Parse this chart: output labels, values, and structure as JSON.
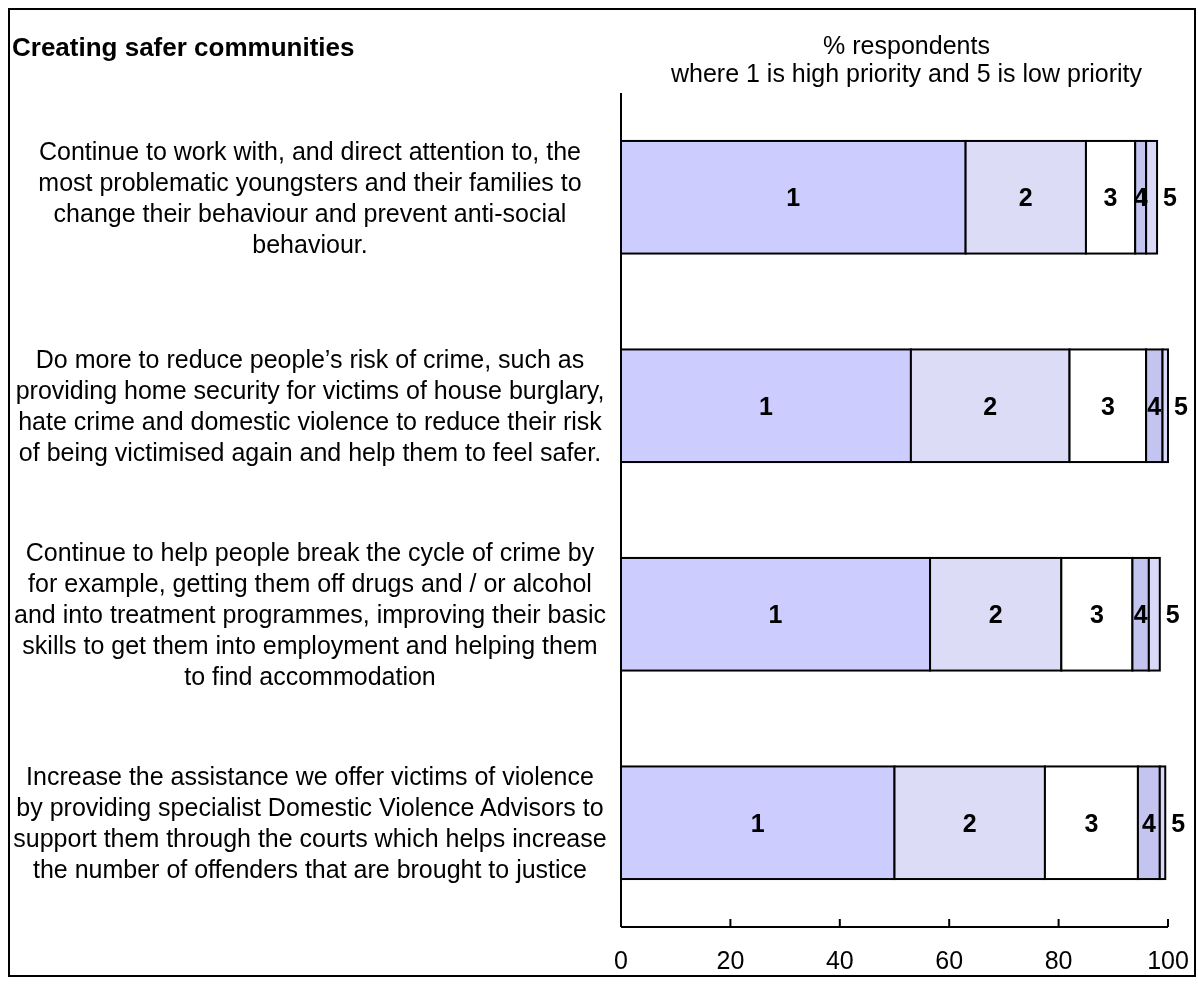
{
  "chart_data": {
    "type": "bar",
    "orientation": "horizontal",
    "stacked": true,
    "title": "Creating safer communities",
    "xlabel": "% respondents\nwhere 1 is high priority and 5 is low priority",
    "categories": [
      "Continue to work with, and direct attention to, the most problematic youngsters and their families to change their behaviour and prevent anti-social behaviour.",
      "Do more to reduce people’s risk of crime, such as providing home security for victims of house burglary, hate crime and domestic violence to reduce their risk of being victimised again and help them to feel safer.",
      "Continue to help people break the cycle of crime by for example, getting them off drugs and / or alcohol and into treatment programmes, improving their basic skills to get them into employment and helping them to find accommodation",
      "Increase the assistance we offer victims of violence by providing specialist Domestic Violence Advisors to support them through the courts which helps increase the number of offenders that are brought to justice"
    ],
    "series": [
      {
        "name": "1",
        "color": "#ccccff",
        "values": [
          63,
          53,
          56.5,
          50
        ]
      },
      {
        "name": "2",
        "color": "#dcdcf6",
        "values": [
          22,
          29,
          24,
          27.5
        ]
      },
      {
        "name": "3",
        "color": "#ffffff",
        "values": [
          9,
          14,
          13,
          17
        ]
      },
      {
        "name": "4",
        "color": "#c4c4f0",
        "values": [
          2,
          3,
          3,
          4
        ]
      },
      {
        "name": "5",
        "color": "#dadaf8",
        "values": [
          2,
          1,
          2,
          1
        ]
      }
    ],
    "xlim": [
      0,
      100
    ],
    "xticks": [
      0,
      20,
      40,
      60,
      80,
      100
    ]
  }
}
